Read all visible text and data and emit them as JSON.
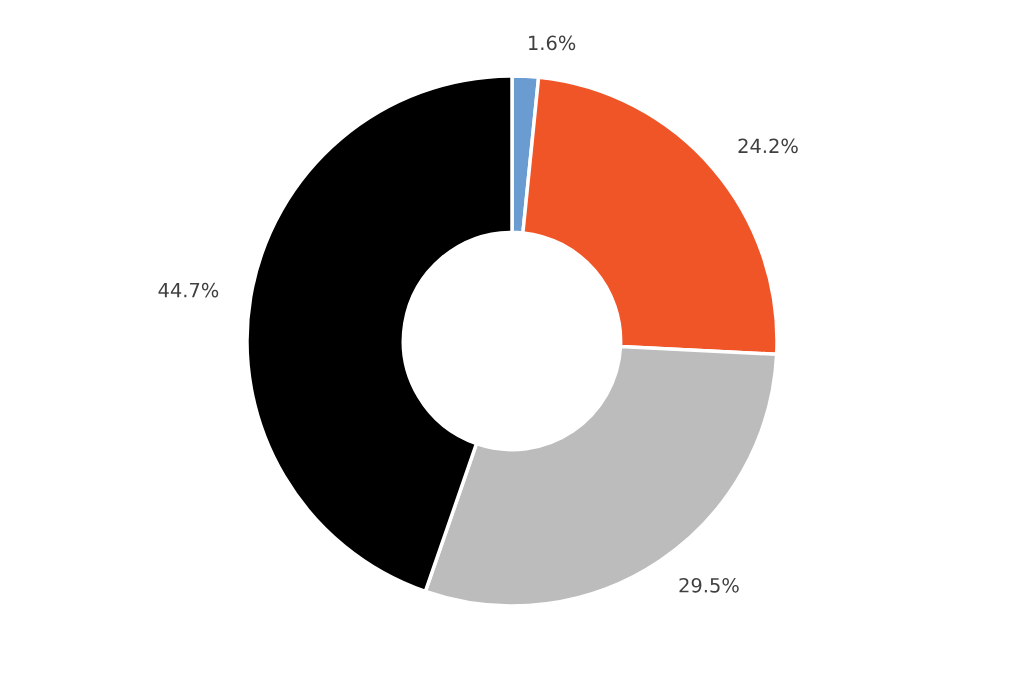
{
  "chart_data": {
    "type": "donut",
    "categories": [
      null,
      null,
      null,
      null
    ],
    "values": [
      1.6,
      24.2,
      29.5,
      44.7
    ],
    "colors": [
      "#6a9bd1",
      "#f05528",
      "#bcbcbc",
      "#000000"
    ],
    "value_labels": [
      "1.6%",
      "24.2%",
      "29.5%",
      "44.7%"
    ]
  }
}
